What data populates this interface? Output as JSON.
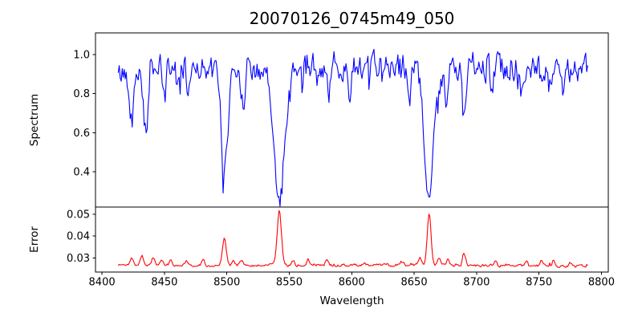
{
  "chart_data": [
    {
      "type": "line",
      "name": "spectrum",
      "title": "20070126_0745m49_050",
      "ylabel": "Spectrum",
      "color": "#0000ff",
      "grid": false,
      "legend": "none",
      "xlim": [
        8394.8,
        8805.5
      ],
      "ylim": [
        0.218,
        1.112
      ],
      "yticks": [
        0.4,
        0.6,
        0.8,
        1.0
      ],
      "ytick_labels": [
        "0.4",
        "0.6",
        "0.8",
        "1.0"
      ],
      "x_start": 8413,
      "x_end": 8789,
      "x_step": 0.8,
      "base_anchors": [
        [
          8413,
          0.895
        ],
        [
          8425,
          0.915
        ],
        [
          8445,
          0.94
        ],
        [
          8470,
          0.95
        ],
        [
          8495,
          0.96
        ],
        [
          8520,
          0.95
        ],
        [
          8555,
          0.945
        ],
        [
          8600,
          0.95
        ],
        [
          8650,
          0.95
        ],
        [
          8700,
          0.945
        ],
        [
          8745,
          0.94
        ],
        [
          8789,
          0.925
        ]
      ],
      "noise": {
        "seed": 42,
        "amplitude": 0.06,
        "smooth": 0.45,
        "spike_prob": 0.09,
        "spike_size": 0.11,
        "spike_sign": -1
      },
      "features": [
        [
          8424,
          -0.23,
          1.7
        ],
        [
          8435,
          -0.3,
          1.7
        ],
        [
          8450,
          -0.17,
          1.4
        ],
        [
          8461,
          -0.12,
          1.2
        ],
        [
          8469,
          -0.14,
          1.4
        ],
        [
          8483,
          -0.1,
          1.2
        ],
        [
          8498,
          -0.5,
          2.6
        ],
        [
          8498,
          -0.06,
          6
        ],
        [
          8513,
          -0.18,
          1.5
        ],
        [
          8527,
          -0.08,
          1.2
        ],
        [
          8542,
          -0.62,
          4.0
        ],
        [
          8542,
          -0.09,
          9
        ],
        [
          8560,
          -0.07,
          1.1
        ],
        [
          8572,
          -0.08,
          1.1
        ],
        [
          8582,
          -0.13,
          1.4
        ],
        [
          8598,
          -0.12,
          1.3
        ],
        [
          8612,
          -0.08,
          1.1
        ],
        [
          8625,
          -0.07,
          1.1
        ],
        [
          8646,
          -0.18,
          1.4
        ],
        [
          8662,
          -0.6,
          3.6
        ],
        [
          8662,
          -0.08,
          8
        ],
        [
          8676,
          -0.19,
          1.3
        ],
        [
          8690,
          -0.29,
          1.6
        ],
        [
          8712,
          -0.1,
          1.2
        ],
        [
          8736,
          -0.12,
          1.3
        ],
        [
          8752,
          -0.09,
          1.1
        ],
        [
          8770,
          -0.14,
          1.4
        ]
      ],
      "notable_absorption_lines": [
        {
          "wavelength": 8498,
          "min_value": 0.4
        },
        {
          "wavelength": 8542,
          "min_value": 0.25
        },
        {
          "wavelength": 8662,
          "min_value": 0.28
        }
      ]
    },
    {
      "type": "line",
      "name": "error",
      "ylabel": "Error",
      "xlabel": "Wavelength",
      "color": "#ff0000",
      "grid": false,
      "legend": "none",
      "xlim": [
        8394.8,
        8805.5
      ],
      "ylim": [
        0.0235,
        0.0533
      ],
      "yticks": [
        0.03,
        0.04,
        0.05
      ],
      "ytick_labels": [
        "0.03",
        "0.04",
        "0.05"
      ],
      "xticks": [
        8400,
        8450,
        8500,
        8550,
        8600,
        8650,
        8700,
        8750,
        8800
      ],
      "xtick_labels": [
        "8400",
        "8450",
        "8500",
        "8550",
        "8600",
        "8650",
        "8700",
        "8750",
        "8800"
      ],
      "x_start": 8413,
      "x_end": 8789,
      "x_step": 0.8,
      "base_anchors": [
        [
          8413,
          0.0268
        ],
        [
          8460,
          0.0267
        ],
        [
          8520,
          0.0266
        ],
        [
          8600,
          0.0266
        ],
        [
          8660,
          0.0267
        ],
        [
          8700,
          0.0264
        ],
        [
          8760,
          0.0263
        ],
        [
          8789,
          0.0262
        ]
      ],
      "noise": {
        "seed": 1337,
        "amplitude": 0.00055,
        "smooth": 0.4,
        "spike_prob": 0.05,
        "spike_size": 0.0011,
        "spike_sign": 1
      },
      "features": [
        [
          8424,
          0.0033,
          1.4
        ],
        [
          8432,
          0.004,
          1.4
        ],
        [
          8441,
          0.0034,
          1.2
        ],
        [
          8448,
          0.0025,
          1.1
        ],
        [
          8455,
          0.0022,
          1.1
        ],
        [
          8468,
          0.002,
          1.1
        ],
        [
          8481,
          0.0024,
          1.1
        ],
        [
          8498,
          0.012,
          1.5
        ],
        [
          8505,
          0.0018,
          1.1
        ],
        [
          8512,
          0.0022,
          1.1
        ],
        [
          8535,
          0.0015,
          1.3
        ],
        [
          8542,
          0.025,
          1.7
        ],
        [
          8553,
          0.0024,
          1.1
        ],
        [
          8565,
          0.0026,
          1.1
        ],
        [
          8580,
          0.002,
          1.1
        ],
        [
          8610,
          0.0012,
          1.2
        ],
        [
          8640,
          0.0018,
          1.6
        ],
        [
          8655,
          0.0032,
          1.2
        ],
        [
          8662,
          0.024,
          1.5
        ],
        [
          8670,
          0.0034,
          1.0
        ],
        [
          8677,
          0.0027,
          1.0
        ],
        [
          8690,
          0.0055,
          1.2
        ],
        [
          8715,
          0.0019,
          1.1
        ],
        [
          8740,
          0.0023,
          1.1
        ],
        [
          8752,
          0.0027,
          1.1
        ],
        [
          8762,
          0.0024,
          1.0
        ],
        [
          8775,
          0.0019,
          1.0
        ]
      ],
      "notable_peaks": [
        {
          "wavelength": 8498,
          "max_value": 0.039
        },
        {
          "wavelength": 8542,
          "max_value": 0.052
        },
        {
          "wavelength": 8662,
          "max_value": 0.051
        }
      ]
    }
  ]
}
